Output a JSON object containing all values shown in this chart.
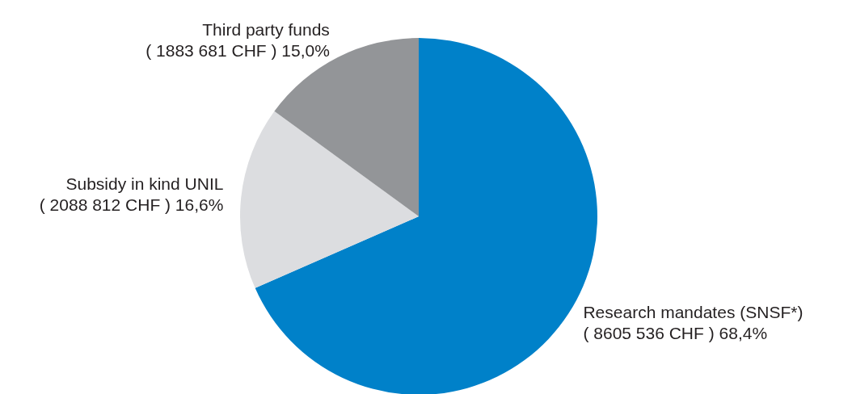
{
  "chart_data": {
    "type": "pie",
    "categories": [
      "Research mandates (SNSF*)",
      "Subsidy in kind UNIL",
      "Third party funds"
    ],
    "values": [
      8605536,
      2088812,
      1883681
    ],
    "value_labels": [
      "( 8605 536 CHF ) 68,4%",
      "( 2088 812 CHF ) 16,6%",
      "( 1883 681 CHF ) 15,0%"
    ],
    "colors": [
      "#0081c9",
      "#dcdde0",
      "#939598"
    ]
  }
}
